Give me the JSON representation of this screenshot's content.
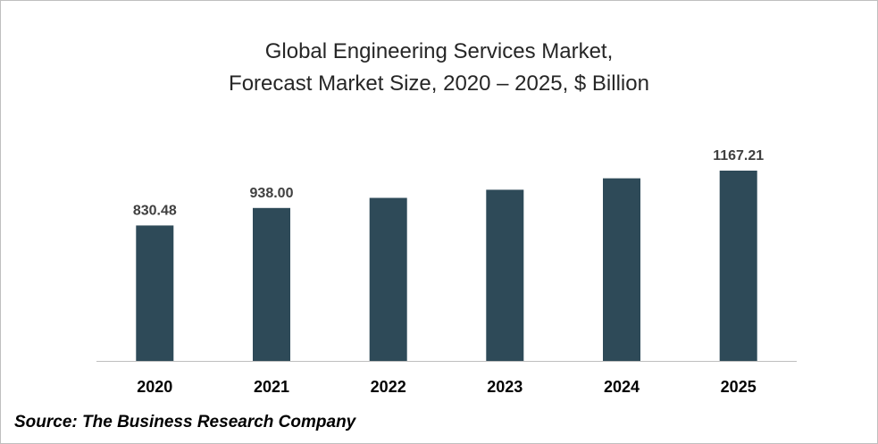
{
  "chart_data": {
    "type": "bar",
    "title_lines": [
      "Global Engineering Services Market,",
      "Forecast Market Size, 2020 – 2025, $ Billion"
    ],
    "categories": [
      "2020",
      "2021",
      "2022",
      "2023",
      "2024",
      "2025"
    ],
    "values": [
      830.48,
      938.0,
      1000.0,
      1050.0,
      1120.0,
      1167.21
    ],
    "data_labels": [
      "830.48",
      "938.00",
      "",
      "",
      "",
      "1167.21"
    ],
    "ylim": [
      0,
      1300
    ],
    "grid": false,
    "bar_color": "#2e4a58",
    "axis_color": "#bfbfbf"
  },
  "footer": {
    "source": "Source: The Business Research Company"
  }
}
